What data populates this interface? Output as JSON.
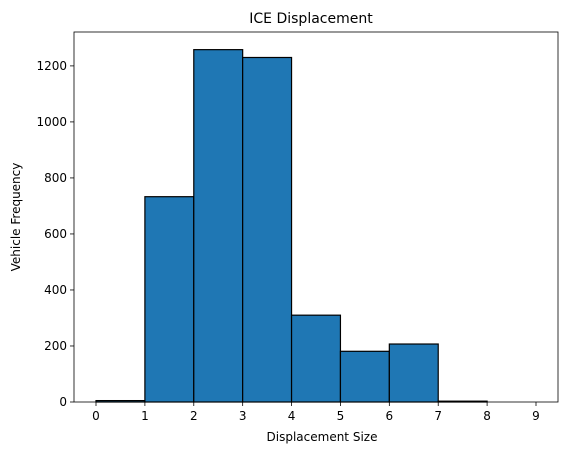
{
  "chart_data": {
    "type": "bar",
    "title": "ICE Displacement",
    "xlabel": "Displacement Size",
    "ylabel": "Vehicle Frequency",
    "bins": [
      {
        "start": 0,
        "end": 1,
        "value": 5
      },
      {
        "start": 1,
        "end": 2,
        "value": 733
      },
      {
        "start": 2,
        "end": 3,
        "value": 1258
      },
      {
        "start": 3,
        "end": 4,
        "value": 1230
      },
      {
        "start": 4,
        "end": 5,
        "value": 310
      },
      {
        "start": 5,
        "end": 6,
        "value": 181
      },
      {
        "start": 6,
        "end": 7,
        "value": 207
      },
      {
        "start": 7,
        "end": 8,
        "value": 3
      },
      {
        "start": 8,
        "end": 9,
        "value": 0
      }
    ],
    "x_ticks": [
      "0",
      "1",
      "2",
      "3",
      "4",
      "5",
      "6",
      "7",
      "8",
      "9"
    ],
    "y_ticks": [
      "0",
      "200",
      "400",
      "600",
      "800",
      "1000",
      "1200"
    ],
    "xlim": [
      -0.45,
      9.45
    ],
    "ylim": [
      0,
      1321
    ],
    "grid": false,
    "bar_color": "#1f77b4",
    "edge_color": "#000000"
  }
}
